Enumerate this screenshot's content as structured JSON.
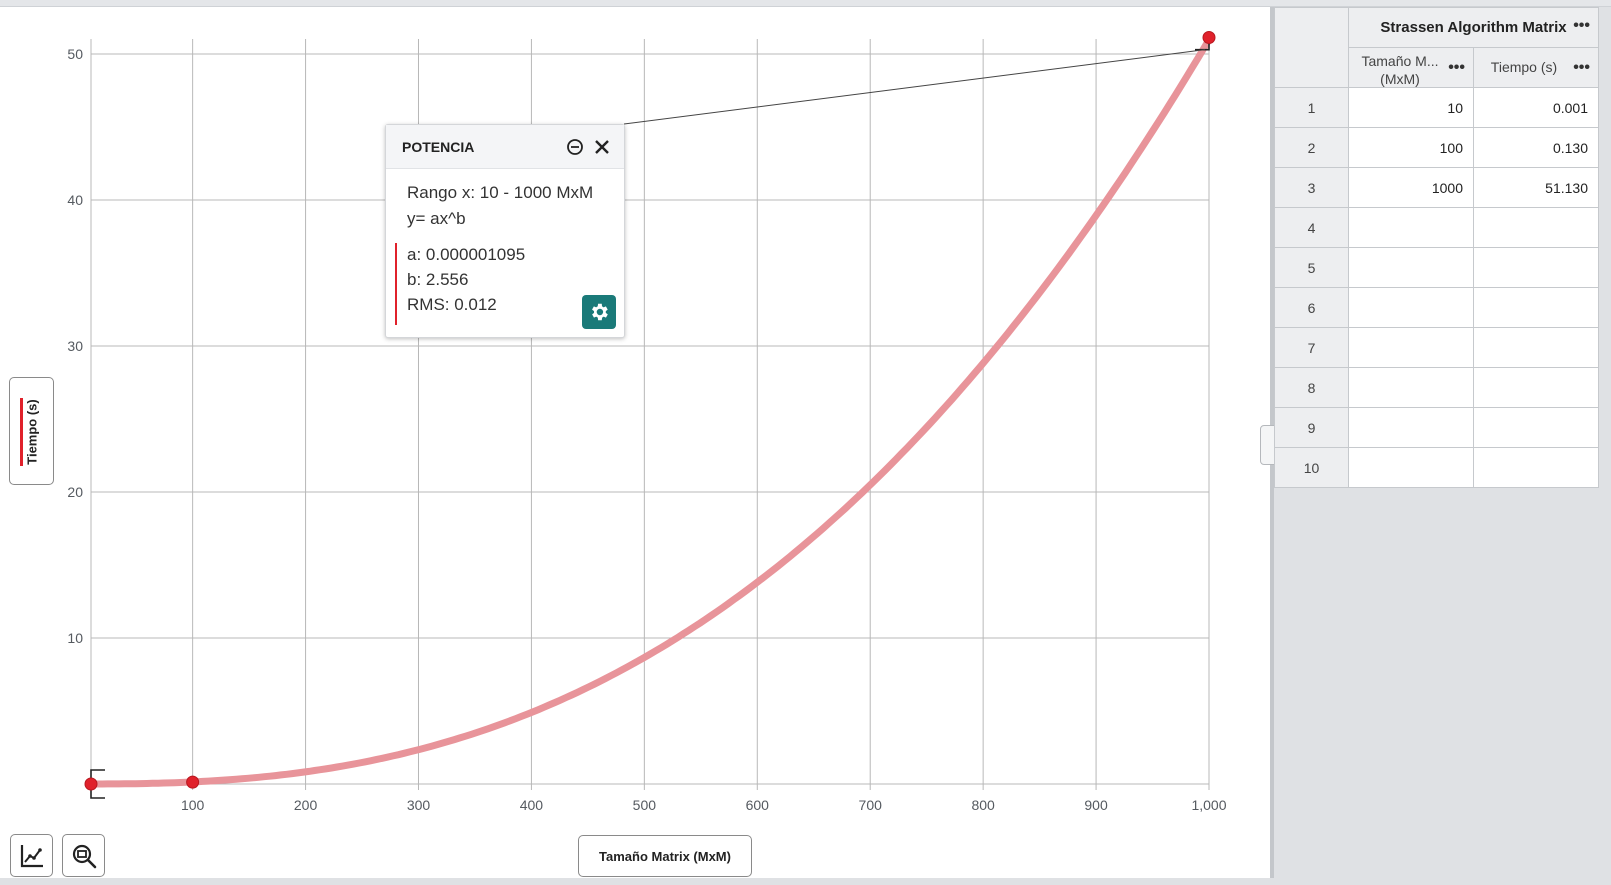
{
  "graph": {
    "y_axis_label": "Tiempo (s)",
    "x_axis_label": "Tamaño Matrix (MxM)",
    "series_color": "#e0212b",
    "curve_color": "#e8949a",
    "tools": {
      "graph_tools_icon": "line-chart-icon",
      "zoom_icon": "zoom-fit-icon"
    }
  },
  "chart_data": {
    "type": "scatter",
    "xlabel": "Tamaño Matrix (MxM)",
    "ylabel": "Tiempo (s)",
    "xlim": [
      10,
      1000
    ],
    "ylim": [
      0,
      50
    ],
    "x_ticks": [
      "100",
      "200",
      "300",
      "400",
      "500",
      "600",
      "700",
      "800",
      "900",
      "1,000"
    ],
    "y_ticks": [
      "10",
      "20",
      "30",
      "40",
      "50"
    ],
    "grid": true,
    "series": [
      {
        "name": "Tiempo (s)",
        "x": [
          10,
          100,
          1000
        ],
        "y": [
          0.001,
          0.13,
          51.13
        ]
      }
    ],
    "fit": {
      "type": "power",
      "a": 1.095e-06,
      "b": 2.556,
      "x_range": [
        10,
        1000
      ]
    }
  },
  "fit_box": {
    "title": "POTENCIA",
    "range_text": "Rango x: 10 - 1000 MxM",
    "equation": "y= ax^b",
    "a_text": "a: 0.000001095",
    "b_text": "b: 2.556",
    "rms_text": "RMS: 0.012",
    "minimize_icon": "minus-circle-icon",
    "close_icon": "close-icon",
    "settings_icon": "gear-icon"
  },
  "table": {
    "title": "Strassen Algorithm Matrix",
    "columns": [
      {
        "label": "Tamaño M...",
        "sublabel": "(MxM)"
      },
      {
        "label": "Tiempo (s)"
      }
    ],
    "rows": [
      {
        "num": "1",
        "x": "10",
        "y": "0.001"
      },
      {
        "num": "2",
        "x": "100",
        "y": "0.130"
      },
      {
        "num": "3",
        "x": "1000",
        "y": "51.130"
      },
      {
        "num": "4",
        "x": "",
        "y": ""
      },
      {
        "num": "5",
        "x": "",
        "y": ""
      },
      {
        "num": "6",
        "x": "",
        "y": ""
      },
      {
        "num": "7",
        "x": "",
        "y": ""
      },
      {
        "num": "8",
        "x": "",
        "y": ""
      },
      {
        "num": "9",
        "x": "",
        "y": ""
      },
      {
        "num": "10",
        "x": "",
        "y": ""
      }
    ],
    "menu_icon": "more-horizontal-icon"
  }
}
